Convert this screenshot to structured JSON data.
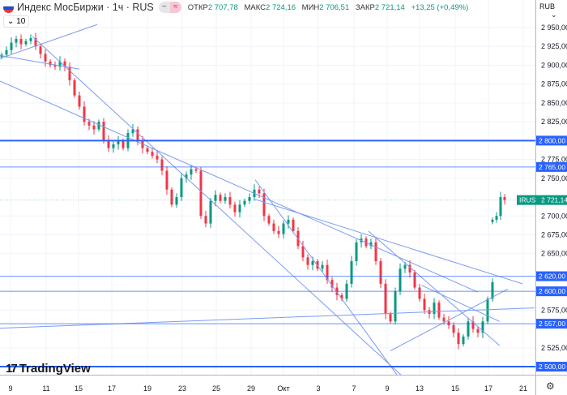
{
  "header": {
    "symbol": "Индекс МосБиржи · 1ч · RUS",
    "open_label": "ОТКР",
    "open": "2 707,78",
    "high_label": "МАКС",
    "high": "2 724,16",
    "low_label": "МИН",
    "low": "2 706,51",
    "close_label": "ЗАКР",
    "close": "2 721,14",
    "change": "+13,25 (+0,49%)",
    "pill_left": "−",
    "pill_right": "≈"
  },
  "indicators_toggle": "10",
  "currency": "RUB",
  "logo": "TradingView",
  "colors": {
    "up": "#089981",
    "down": "#f23645",
    "level": "#2962ff",
    "trend": "#7b9bf0",
    "grid": "#f0f3fa"
  },
  "chart_data": {
    "type": "candlestick",
    "ylim": [
      2490,
      2965
    ],
    "y_ticks": [
      2950,
      2925,
      2900,
      2875,
      2850,
      2825,
      2775,
      2750,
      2700,
      2675,
      2650,
      2575,
      2525
    ],
    "y_tick_labels": [
      "2 950,00",
      "2 925,00",
      "2 900,00",
      "2 875,00",
      "2 850,00",
      "2 825,00",
      "2 775,00",
      "2 750,00",
      "2 700,00",
      "2 675,00",
      "2 650,00",
      "2 575,00",
      "2 525,00"
    ],
    "x_tick_labels": [
      "9",
      "11",
      "15",
      "17",
      "19",
      "23",
      "25",
      "29",
      "Окт",
      "3",
      "7",
      "9",
      "13",
      "15",
      "17",
      "21"
    ],
    "closes_before_gap": [
      2914,
      2920,
      2930,
      2935,
      2928,
      2932,
      2936,
      2925,
      2915,
      2905,
      2900,
      2898,
      2905,
      2898,
      2880,
      2860,
      2845,
      2825,
      2820,
      2815,
      2825,
      2800,
      2790,
      2795,
      2800,
      2790,
      2810,
      2815,
      2800,
      2790,
      2785,
      2780,
      2775,
      2760,
      2735,
      2715,
      2725,
      2750,
      2755,
      2762,
      2760,
      2700,
      2690,
      2720,
      2728,
      2720,
      2725,
      2715,
      2705,
      2715,
      2720,
      2725,
      2735,
      2730,
      2700,
      2690,
      2680,
      2676,
      2690,
      2695,
      2680,
      2660,
      2645,
      2635,
      2640,
      2630,
      2635,
      2615,
      2605,
      2595,
      2590,
      2610,
      2640,
      2665,
      2670,
      2660,
      2665,
      2640,
      2610,
      2570,
      2560,
      2600,
      2630,
      2635,
      2625,
      2605,
      2590,
      2575,
      2570,
      2585,
      2565,
      2560,
      2555,
      2545,
      2530,
      2540,
      2560,
      2550,
      2545,
      2560,
      2590,
      2612
    ],
    "closes_after_gap": [
      2695,
      2700,
      2725,
      2721.14
    ],
    "last_price": {
      "ticker": "IRUS",
      "label": "2 721,14",
      "value": 2721.14
    },
    "levels": [
      {
        "value": 2800,
        "label": "2 800,00",
        "bold": true
      },
      {
        "value": 2765,
        "label": "2 765,00",
        "bold": false
      },
      {
        "value": 2620,
        "label": "2 620,00",
        "bold": false
      },
      {
        "value": 2600,
        "label": "2 600,00",
        "bold": false
      },
      {
        "value": 2557,
        "label": "2 557,00",
        "bold": false
      },
      {
        "value": 2500,
        "label": "2 500,00",
        "bold": true
      }
    ],
    "trend_lines": [
      {
        "bar1": 0,
        "p1": 2909,
        "bar2": 20,
        "p2": 2954
      },
      {
        "bar1": 0,
        "p1": 2913,
        "bar2": 16.3,
        "p2": 2895
      },
      {
        "bar1": 6.7,
        "p1": 2938,
        "bar2": 82.5,
        "p2": 2489
      },
      {
        "bar1": 0,
        "p1": 2879,
        "bar2": 98.3,
        "p2": 2599
      },
      {
        "bar1": 52.5,
        "p1": 2748,
        "bar2": 81.7,
        "p2": 2489
      },
      {
        "bar1": 52.5,
        "p1": 2722,
        "bar2": 107.5,
        "p2": 2610
      },
      {
        "bar1": 80.3,
        "p1": 2521,
        "bar2": 104.5,
        "p2": 2603
      },
      {
        "bar1": 0,
        "p1": 2551,
        "bar2": 110,
        "p2": 2578
      },
      {
        "bar1": 75.8,
        "p1": 2680,
        "bar2": 102.8,
        "p2": 2528
      },
      {
        "bar1": 86.7,
        "p1": 2608,
        "bar2": 102.8,
        "p2": 2560
      }
    ]
  }
}
